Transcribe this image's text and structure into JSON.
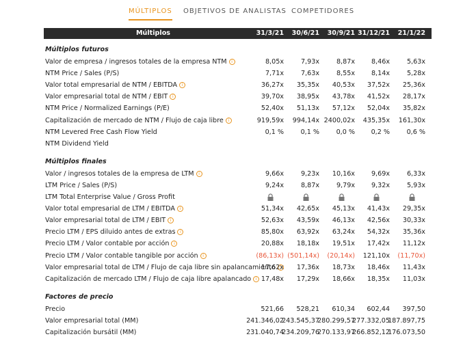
{
  "tabs": [
    "MÚLTIPLOS",
    "OBJETIVOS DE ANALISTAS",
    "COMPETIDORES"
  ],
  "active_tab": 0,
  "table": {
    "header": "Múltiplos",
    "columns": [
      "31/3/21",
      "30/6/21",
      "30/9/21",
      "31/12/21",
      "21/1/22"
    ],
    "sections": [
      {
        "title": "Múltiplos futuros",
        "rows": [
          {
            "label": "Valor de empresa / ingresos totales de la empresa NTM",
            "info": true,
            "values": [
              "8,05x",
              "7,93x",
              "8,87x",
              "8,46x",
              "5,63x"
            ]
          },
          {
            "label": "NTM Price / Sales (P/S)",
            "info": false,
            "values": [
              "7,71x",
              "7,63x",
              "8,55x",
              "8,14x",
              "5,28x"
            ]
          },
          {
            "label": "Valor total empresarial de NTM / EBITDA",
            "info": true,
            "values": [
              "36,27x",
              "35,35x",
              "40,53x",
              "37,52x",
              "25,36x"
            ]
          },
          {
            "label": "Valor empresarial total de NTM / EBIT",
            "info": true,
            "values": [
              "39,70x",
              "38,95x",
              "43,78x",
              "41,52x",
              "28,17x"
            ]
          },
          {
            "label": "NTM Price / Normalized Earnings (P/E)",
            "info": false,
            "values": [
              "52,40x",
              "51,13x",
              "57,12x",
              "52,04x",
              "35,82x"
            ]
          },
          {
            "label": "Capitalización de mercado de NTM / Flujo de caja libre",
            "info": true,
            "values": [
              "919,59x",
              "994,14x",
              "2400,02x",
              "435,35x",
              "161,30x"
            ]
          },
          {
            "label": "NTM Levered Free Cash Flow Yield",
            "info": false,
            "values": [
              "0,1 %",
              "0,1 %",
              "0,0 %",
              "0,2 %",
              "0,6 %"
            ]
          },
          {
            "label": "NTM Dividend Yield",
            "info": false,
            "values": [
              null,
              null,
              null,
              null,
              null
            ]
          }
        ]
      },
      {
        "title": "Múltiplos finales",
        "rows": [
          {
            "label": "Valor / ingresos totales de la empresa de LTM",
            "info": true,
            "values": [
              "9,66x",
              "9,23x",
              "10,16x",
              "9,69x",
              "6,33x"
            ]
          },
          {
            "label": "LTM Price / Sales (P/S)",
            "info": false,
            "values": [
              "9,24x",
              "8,87x",
              "9,79x",
              "9,32x",
              "5,93x"
            ]
          },
          {
            "label": "LTM Total Enterprise Value / Gross Profit",
            "info": false,
            "locked": true,
            "values": [
              null,
              null,
              null,
              null,
              null
            ]
          },
          {
            "label": "Valor total empresarial de LTM / EBITDA",
            "info": true,
            "values": [
              "51,34x",
              "42,65x",
              "45,13x",
              "41,43x",
              "29,35x"
            ]
          },
          {
            "label": "Valor empresarial total de LTM / EBIT",
            "info": true,
            "values": [
              "52,63x",
              "43,59x",
              "46,13x",
              "42,56x",
              "30,33x"
            ]
          },
          {
            "label": "Precio LTM / EPS diluido antes de extras",
            "info": true,
            "values": [
              "85,80x",
              "63,92x",
              "63,24x",
              "54,32x",
              "35,36x"
            ]
          },
          {
            "label": "Precio LTM / Valor contable por acción",
            "info": true,
            "values": [
              "20,88x",
              "18,18x",
              "19,51x",
              "17,42x",
              "11,12x"
            ]
          },
          {
            "label": "Precio LTM / Valor contable tangible por acción",
            "info": true,
            "values": [
              "(86,13x)",
              "(501,14x)",
              "(20,14x)",
              "121,10x",
              "(11,70x)"
            ]
          },
          {
            "label": "Valor empresarial total de LTM / Flujo de caja libre sin apalancamiento",
            "info": true,
            "values": [
              "17,62x",
              "17,36x",
              "18,73x",
              "18,46x",
              "11,43x"
            ]
          },
          {
            "label": "Capitalización de mercado LTM / Flujo de caja libre apalancado",
            "info": true,
            "values": [
              "17,48x",
              "17,29x",
              "18,66x",
              "18,35x",
              "11,03x"
            ]
          }
        ]
      },
      {
        "title": "Factores de precio",
        "rows": [
          {
            "label": "Precio",
            "info": false,
            "values": [
              "521,66",
              "528,21",
              "610,34",
              "602,44",
              "397,50"
            ]
          },
          {
            "label": "Valor empresarial total (MM)",
            "info": false,
            "values": [
              "241.346,02",
              "243.545,37",
              "280.299,57",
              "277.332,05",
              "187.897,75"
            ]
          },
          {
            "label": "Capitalización bursátil (MM)",
            "info": false,
            "values": [
              "231.040,74",
              "234.209,76",
              "270.133,97",
              "266.852,12",
              "176.073,50"
            ]
          }
        ]
      }
    ]
  }
}
